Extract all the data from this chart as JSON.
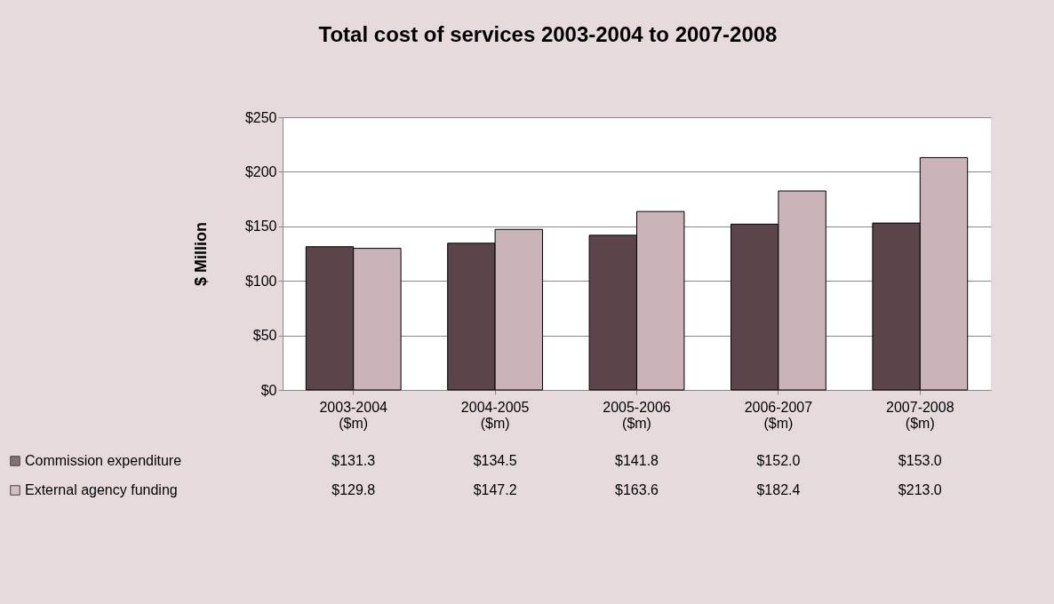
{
  "chart_data": {
    "type": "bar",
    "title": "Total cost of services 2003-2004 to 2007-2008",
    "ylabel": "$ Million",
    "categories": [
      "2003-2004\n($m)",
      "2004-2005\n($m)",
      "2005-2006\n($m)",
      "2006-2007\n($m)",
      "2007-2008\n($m)"
    ],
    "series": [
      {
        "name": "Commission expenditure",
        "color": "#5c444b",
        "values": [
          131.3,
          134.5,
          141.8,
          152.0,
          153.0
        ],
        "value_labels": [
          "$131.3",
          "$134.5",
          "$141.8",
          "$152.0",
          "$153.0"
        ]
      },
      {
        "name": "External agency funding",
        "color": "#cbb4b9",
        "values": [
          129.8,
          147.2,
          163.6,
          182.4,
          213.0
        ],
        "value_labels": [
          "$129.8",
          "$147.2",
          "$163.6",
          "$182.4",
          "$213.0"
        ]
      }
    ],
    "ylim": [
      0,
      250
    ],
    "yticks": [
      {
        "value": 0,
        "label": "$0"
      },
      {
        "value": 50,
        "label": "$50"
      },
      {
        "value": 100,
        "label": "$100"
      },
      {
        "value": 150,
        "label": "$150"
      },
      {
        "value": 200,
        "label": "$200"
      },
      {
        "value": 250,
        "label": "$250"
      }
    ],
    "grid": "y",
    "legend": "bottom"
  }
}
